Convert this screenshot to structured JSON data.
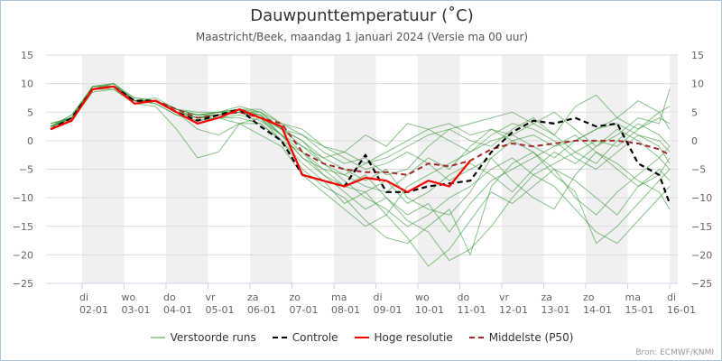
{
  "title": "Dauwpunttemperatuur (˚C)",
  "subtitle": "Maastricht/Beek, maandag 1 januari 2024 (Versie ma 00 uur)",
  "source": "Bron: ECMWF/KNMI",
  "colors": {
    "ensemble": "#3a9a3a",
    "control": "#000000",
    "hires": "#ff0000",
    "p50": "#a52a2a",
    "band": "#f0f0f0",
    "grid": "#dddddd"
  },
  "chart_data": {
    "type": "line",
    "title": "Dauwpunttemperatuur (˚C)",
    "ylim": [
      -25,
      15
    ],
    "yticks": [
      15,
      10,
      5,
      0,
      -5,
      -10,
      -15,
      -20,
      -25
    ],
    "xlim": [
      "2024-01-01T00:00",
      "2024-01-16T04:00"
    ],
    "grid": true,
    "legend_position": "bottom",
    "xticks": [
      {
        "day": "di",
        "date": "02-01"
      },
      {
        "day": "wo",
        "date": "03-01"
      },
      {
        "day": "do",
        "date": "04-01"
      },
      {
        "day": "vr",
        "date": "05-01"
      },
      {
        "day": "za",
        "date": "06-01"
      },
      {
        "day": "zo",
        "date": "07-01"
      },
      {
        "day": "ma",
        "date": "08-01"
      },
      {
        "day": "di",
        "date": "09-01"
      },
      {
        "day": "wo",
        "date": "10-01"
      },
      {
        "day": "do",
        "date": "11-01"
      },
      {
        "day": "vr",
        "date": "12-01"
      },
      {
        "day": "za",
        "date": "13-01"
      },
      {
        "day": "zo",
        "date": "14-01"
      },
      {
        "day": "ma",
        "date": "15-01"
      },
      {
        "day": "di",
        "date": "16-01"
      }
    ],
    "x": [
      "2024-01-01T06:00",
      "2024-01-01T18:00",
      "2024-01-02T06:00",
      "2024-01-02T18:00",
      "2024-01-03T06:00",
      "2024-01-03T18:00",
      "2024-01-04T06:00",
      "2024-01-04T18:00",
      "2024-01-05T06:00",
      "2024-01-05T18:00",
      "2024-01-06T06:00",
      "2024-01-06T18:00",
      "2024-01-07T06:00",
      "2024-01-07T18:00",
      "2024-01-08T06:00",
      "2024-01-08T18:00",
      "2024-01-09T06:00",
      "2024-01-09T18:00",
      "2024-01-10T06:00",
      "2024-01-10T18:00",
      "2024-01-11T06:00",
      "2024-01-11T18:00",
      "2024-01-12T06:00",
      "2024-01-12T18:00",
      "2024-01-13T06:00",
      "2024-01-13T18:00",
      "2024-01-14T06:00",
      "2024-01-14T18:00",
      "2024-01-15T06:00",
      "2024-01-15T18:00",
      "2024-01-16T00:00"
    ],
    "legend": [
      {
        "key": "ensemble",
        "label": "Verstoorde runs"
      },
      {
        "key": "control",
        "label": "Controle"
      },
      {
        "key": "hires",
        "label": "Hoge resolutie"
      },
      {
        "key": "p50",
        "label": "Middelste (P50)"
      }
    ],
    "control": [
      2,
      4,
      9,
      9.5,
      7,
      7,
      5,
      3.5,
      4.5,
      5.5,
      2.5,
      0,
      -6,
      -7,
      -8,
      -2.5,
      -9,
      -9,
      -8,
      -7.5,
      -7,
      -2,
      1.5,
      3.5,
      3,
      4,
      2.5,
      3,
      -4,
      -6,
      -11
    ],
    "hires": [
      2,
      3.5,
      9,
      9.5,
      6.5,
      7,
      5,
      3,
      4,
      5.5,
      4,
      2.5,
      -6,
      -7,
      -8,
      -6.5,
      -7,
      -9,
      -7,
      -8,
      -3.5,
      null,
      null,
      null,
      null,
      null,
      null,
      null,
      null,
      null,
      null
    ],
    "p50": [
      2,
      3.5,
      9,
      9.5,
      7,
      7,
      5.5,
      4,
      4.5,
      5,
      4,
      3,
      -2,
      -4,
      -5,
      -5.5,
      -5.5,
      -6,
      -4,
      -4.5,
      -3.5,
      -1.5,
      -0.5,
      -1,
      -0.5,
      0,
      0,
      0,
      -0.5,
      -1.5,
      -2.5
    ],
    "ensemble": [
      [
        2.5,
        4,
        9,
        9.5,
        7,
        7,
        5,
        4,
        4.5,
        5,
        4,
        1,
        -3,
        -5,
        -6,
        -4,
        -2,
        0,
        2,
        3,
        1,
        2,
        0,
        1,
        -1,
        0,
        2,
        3,
        1,
        0,
        -2
      ],
      [
        2.5,
        4.5,
        9.5,
        10,
        7,
        7.5,
        5.5,
        4.5,
        5,
        5.5,
        4.5,
        2,
        0,
        -4,
        -7,
        -10,
        -12,
        -15,
        -13,
        -10,
        -8,
        -5,
        -3,
        -6,
        -4,
        -2,
        0,
        -1,
        2,
        4,
        3
      ],
      [
        2,
        3.5,
        8.5,
        9,
        6.5,
        6,
        2,
        -3,
        -2,
        3,
        3,
        0,
        -5,
        -8,
        -10,
        -14,
        -17,
        -18,
        -15,
        -12,
        -20,
        -8,
        -4,
        -2,
        -5,
        -10,
        -13,
        -9,
        -6,
        -3,
        -1
      ],
      [
        3,
        4,
        9,
        10,
        7.5,
        7,
        5,
        4.5,
        5,
        6,
        5,
        3,
        1,
        -2,
        -4,
        -3,
        -6,
        -5,
        -1,
        2,
        3,
        4,
        5,
        3,
        1,
        6,
        8,
        4,
        2,
        5,
        6
      ],
      [
        2.5,
        4,
        9,
        9.5,
        7,
        6.5,
        4.5,
        3.5,
        4,
        4.5,
        3.5,
        1,
        -2,
        -6,
        -9,
        -12,
        -10,
        -14,
        -16,
        -21,
        -19,
        -15,
        -10,
        -6,
        -8,
        -12,
        -16,
        -18,
        -14,
        -10,
        -8
      ],
      [
        2,
        4,
        9.5,
        9.5,
        7,
        7,
        5.5,
        5,
        5,
        5.5,
        5,
        2,
        -1,
        -3,
        -2,
        1,
        -1,
        3,
        2,
        0,
        -2,
        0,
        1,
        -1,
        -3,
        0,
        2,
        4,
        7,
        5,
        2
      ],
      [
        2.5,
        3.5,
        9,
        9,
        6.5,
        7,
        5,
        2,
        1,
        3,
        4,
        0,
        -4,
        -7,
        -11,
        -9,
        -13,
        -8,
        -6,
        -4,
        -2,
        1,
        3,
        2,
        0,
        -3,
        -5,
        -2,
        1,
        -1,
        -4
      ],
      [
        3,
        4,
        9,
        10,
        7,
        7,
        5,
        4,
        4.5,
        5,
        4,
        2,
        0,
        -3,
        -5,
        -7,
        -5,
        -10,
        -12,
        -13,
        -9,
        -3,
        0,
        -2,
        -6,
        -9,
        -18,
        -15,
        -11,
        -7,
        -5
      ],
      [
        2.5,
        4,
        9.5,
        9.5,
        7,
        7,
        5,
        4,
        5,
        5,
        4.5,
        1,
        -1,
        -4,
        -6,
        -8,
        -9,
        -6,
        -3,
        -5,
        -1,
        2,
        1,
        3,
        5,
        2,
        -1,
        1,
        4,
        3,
        9
      ],
      [
        2.5,
        4.5,
        9,
        9.5,
        7.5,
        7,
        5.5,
        4.5,
        4.5,
        5.5,
        5.5,
        3,
        2,
        -1,
        -3,
        -5,
        -4,
        -2,
        -4,
        -7,
        -5,
        -3,
        -7,
        -10,
        -12,
        -6,
        -2,
        -4,
        -7,
        -9,
        -12
      ],
      [
        2,
        4,
        9,
        9.5,
        7,
        6.5,
        4.5,
        3.5,
        4,
        4,
        3,
        0,
        -2,
        -5,
        -8,
        -6,
        -10,
        -13,
        -11,
        -16,
        -11,
        -7,
        -5,
        -3,
        -1,
        1,
        -2,
        -5,
        -8,
        -6,
        -3
      ],
      [
        3,
        4,
        9.5,
        10,
        7,
        7,
        5.5,
        4.5,
        5,
        5,
        5,
        2,
        1,
        -1,
        -2,
        -4,
        -3,
        -1,
        1,
        2,
        0,
        -1,
        2,
        4,
        1,
        -2,
        -4,
        0,
        3,
        1,
        -1
      ],
      [
        2.5,
        4,
        9,
        9.5,
        7,
        7,
        5,
        4,
        4,
        3,
        1,
        -1,
        -6,
        -9,
        -12,
        -15,
        -13,
        -17,
        -22,
        -19,
        -14,
        -9,
        -11,
        -8,
        -5,
        -7,
        -10,
        -13,
        -8,
        -5,
        -7
      ],
      [
        2.5,
        4,
        9,
        9.5,
        7,
        7,
        5,
        4,
        4.5,
        5,
        4.5,
        1,
        -3,
        -6,
        -8,
        -9,
        -7,
        -11,
        -9,
        -6,
        -4,
        -6,
        -9,
        -5,
        -2,
        -4,
        -1,
        2,
        0,
        -3,
        -5
      ]
    ]
  }
}
